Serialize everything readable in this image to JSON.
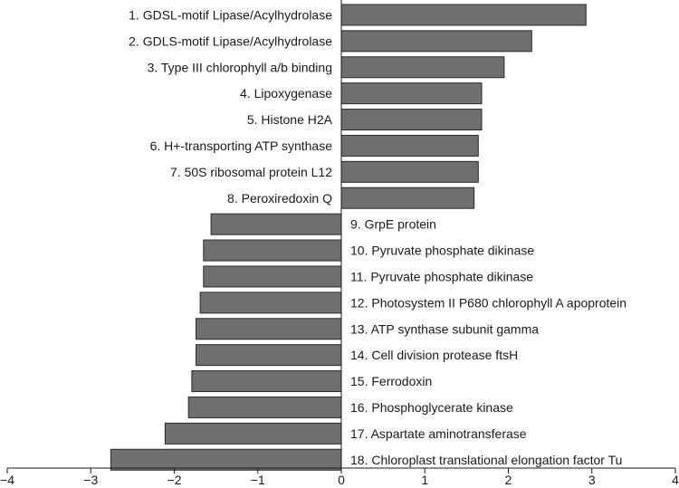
{
  "chart_data": {
    "type": "bar",
    "orientation": "horizontal",
    "categories": [
      "1. GDSL-motif Lipase/Acylhydrolase",
      "2. GDLS-motif Lipase/Acylhydrolase",
      "3. Type III chlorophyll a/b binding",
      "4. Lipoxygenase",
      "5. Histone H2A",
      "6. H+-transporting ATP synthase",
      "7. 50S ribosomal protein L12",
      "8. Peroxiredoxin Q",
      "9. GrpE protein",
      "10. Pyruvate phosphate dikinase",
      "11. Pyruvate phosphate dikinase",
      "12. Photosystem II P680 chlorophyll A apoprotein",
      "13. ATP synthase subunit gamma",
      "14. Cell division protease ftsH",
      "15. Ferrodoxin",
      "16. Phosphoglycerate kinase",
      "17. Aspartate aminotransferase",
      "18. Chloroplast translational elongation factor Tu"
    ],
    "values": [
      2.93,
      2.28,
      1.95,
      1.68,
      1.68,
      1.64,
      1.64,
      1.59,
      -1.56,
      -1.65,
      -1.65,
      -1.69,
      -1.74,
      -1.74,
      -1.79,
      -1.83,
      -2.11,
      -2.76
    ],
    "xlim": [
      -4,
      4
    ],
    "xticks": [
      "−4",
      "−3",
      "−2",
      "−1",
      "0",
      "1",
      "2",
      "3",
      "4"
    ],
    "xtick_values": [
      -4,
      -3,
      -2,
      -1,
      0,
      1,
      2,
      3,
      4
    ],
    "title": "",
    "xlabel": "",
    "ylabel": "",
    "grid": false,
    "bar_color": "#6f6f72"
  }
}
